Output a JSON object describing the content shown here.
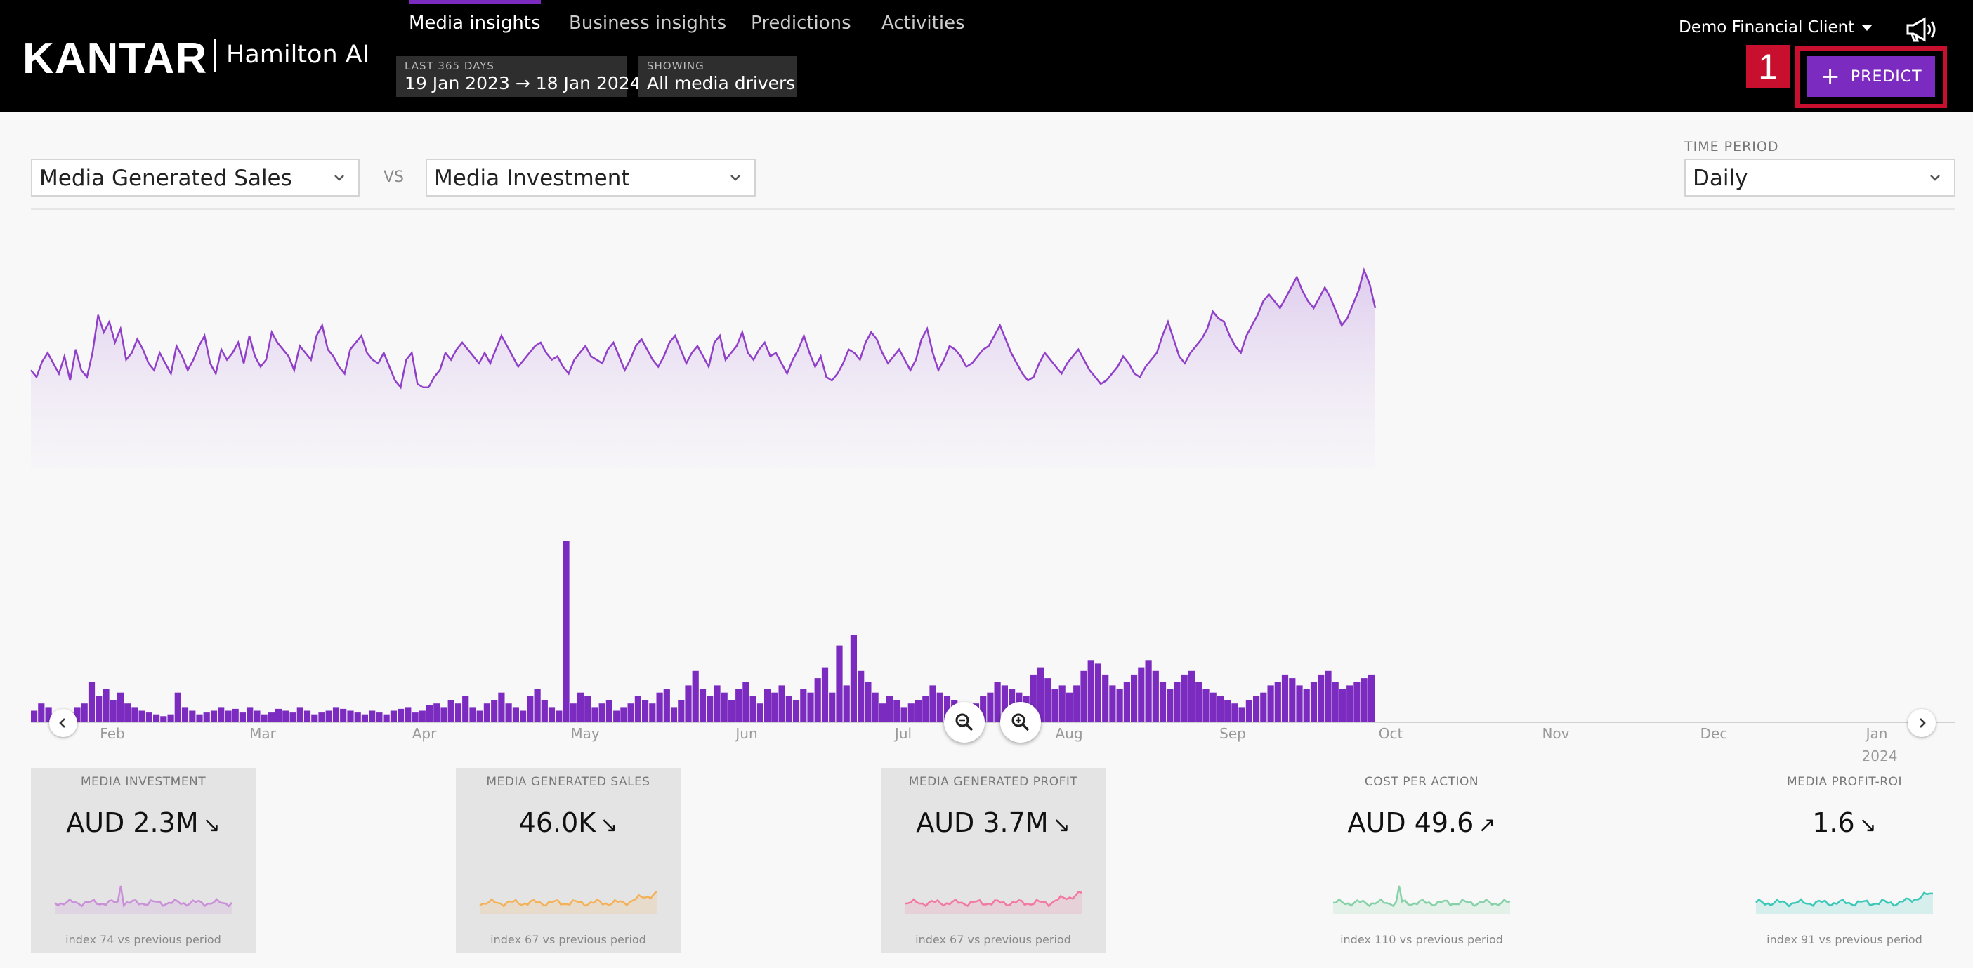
{
  "header": {
    "logo": "KANTAR",
    "product": "Hamilton AI",
    "tabs": [
      {
        "label": "Media insights",
        "active": true
      },
      {
        "label": "Business insights",
        "active": false
      },
      {
        "label": "Predictions",
        "active": false
      },
      {
        "label": "Activities",
        "active": false
      }
    ],
    "period": {
      "label": "LAST 365 DAYS",
      "value": "19 Jan 2023 → 18 Jan 2024"
    },
    "showing": {
      "label": "SHOWING",
      "value": "All media drivers"
    },
    "client": "Demo  Financial  Client",
    "predict_label": "PREDICT",
    "annotation": "1",
    "accent_color": "#7b2bbf",
    "annotation_color": "#c8102e",
    "icons": [
      "chevron-down-icon",
      "megaphone-icon",
      "plus-icon"
    ]
  },
  "controls": {
    "metric_left": "Media Generated Sales",
    "vs": "VS",
    "metric_right": "Media Investment",
    "time_period_label": "TIME PERIOD",
    "time_period": "Daily"
  },
  "chart_data": {
    "type": "line+bar",
    "x_ticks": [
      "Feb",
      "Mar",
      "Apr",
      "May",
      "Jun",
      "Jul",
      "Aug",
      "Sep",
      "Oct",
      "Nov",
      "Dec",
      "Jan"
    ],
    "x_sub_label": "2024",
    "series": [
      {
        "type": "area",
        "color": "#8f3fc8",
        "values": [
          50,
          46,
          55,
          60,
          54,
          48,
          58,
          44,
          62,
          50,
          46,
          60,
          82,
          72,
          78,
          66,
          74,
          56,
          60,
          68,
          62,
          54,
          50,
          60,
          54,
          48,
          64,
          58,
          50,
          56,
          64,
          70,
          54,
          48,
          62,
          56,
          60,
          66,
          54,
          70,
          58,
          52,
          56,
          72,
          66,
          62,
          58,
          50,
          64,
          60,
          56,
          70,
          76,
          62,
          58,
          52,
          48,
          62,
          66,
          70,
          60,
          56,
          54,
          60,
          52,
          44,
          40,
          56,
          60,
          42,
          40,
          40,
          46,
          50,
          60,
          56,
          62,
          66,
          62,
          58,
          54,
          60,
          54,
          62,
          70,
          64,
          58,
          52,
          56,
          60,
          64,
          66,
          60,
          56,
          58,
          52,
          48,
          56,
          60,
          64,
          58,
          56,
          54,
          62,
          66,
          58,
          50,
          56,
          64,
          68,
          62,
          56,
          52,
          58,
          66,
          70,
          62,
          54,
          60,
          64,
          58,
          52,
          66,
          70,
          56,
          60,
          64,
          72,
          60,
          56,
          62,
          66,
          58,
          60,
          54,
          48,
          56,
          62,
          70,
          60,
          52,
          58,
          46,
          44,
          48,
          54,
          62,
          60,
          56,
          66,
          72,
          68,
          60,
          54,
          58,
          62,
          56,
          50,
          56,
          68,
          74,
          60,
          50,
          56,
          64,
          62,
          58,
          52,
          54,
          58,
          62,
          64,
          70,
          76,
          68,
          60,
          54,
          48,
          44,
          46,
          54,
          60,
          56,
          52,
          48,
          54,
          58,
          62,
          56,
          50,
          46,
          42,
          44,
          48,
          52,
          58,
          54,
          48,
          46,
          52,
          56,
          60,
          70,
          78,
          68,
          58,
          54,
          60,
          64,
          68,
          74,
          84,
          80,
          78,
          70,
          64,
          60,
          70,
          76,
          82,
          90,
          94,
          90,
          86,
          92,
          98,
          104,
          96,
          90,
          86,
          92,
          98,
          92,
          84,
          76,
          80,
          88,
          96,
          108,
          100,
          86
        ]
      },
      {
        "type": "bar",
        "color": "#7b2bbf",
        "values": [
          6,
          10,
          8,
          4,
          6,
          5,
          8,
          10,
          22,
          14,
          18,
          12,
          16,
          10,
          8,
          6,
          5,
          4,
          3,
          4,
          16,
          8,
          6,
          4,
          5,
          6,
          8,
          6,
          7,
          5,
          8,
          6,
          4,
          5,
          7,
          6,
          5,
          8,
          6,
          4,
          5,
          6,
          8,
          7,
          6,
          5,
          4,
          6,
          5,
          4,
          6,
          7,
          8,
          5,
          6,
          9,
          10,
          8,
          12,
          10,
          14,
          8,
          6,
          10,
          12,
          16,
          10,
          8,
          6,
          14,
          18,
          12,
          8,
          6,
          100,
          10,
          16,
          14,
          8,
          10,
          12,
          6,
          8,
          10,
          14,
          12,
          10,
          16,
          18,
          8,
          12,
          20,
          28,
          18,
          14,
          20,
          16,
          12,
          18,
          22,
          14,
          10,
          18,
          16,
          20,
          14,
          12,
          18,
          16,
          24,
          30,
          16,
          42,
          20,
          48,
          28,
          22,
          16,
          10,
          14,
          12,
          8,
          10,
          12,
          14,
          20,
          16,
          14,
          12,
          10,
          8,
          10,
          14,
          16,
          22,
          20,
          18,
          16,
          14,
          26,
          30,
          24,
          18,
          20,
          16,
          20,
          28,
          34,
          32,
          26,
          20,
          18,
          22,
          26,
          30,
          34,
          28,
          22,
          18,
          22,
          26,
          28,
          22,
          18,
          16,
          14,
          12,
          10,
          8,
          12,
          14,
          16,
          20,
          22,
          26,
          24,
          20,
          18,
          22,
          26,
          28,
          22,
          18,
          20,
          22,
          24,
          26
        ]
      }
    ]
  },
  "cards": [
    {
      "label": "MEDIA INVESTMENT",
      "value": "AUD 2.3M",
      "arrow": "↘",
      "index": "index 74 vs previous period",
      "shaded": true,
      "color": "#c98fd8"
    },
    {
      "label": "MEDIA GENERATED SALES",
      "value": "46.0K",
      "arrow": "↘",
      "index": "index 67 vs previous period",
      "shaded": true,
      "color": "#f3b25a"
    },
    {
      "label": "MEDIA GENERATED PROFIT",
      "value": "AUD 3.7M",
      "arrow": "↘",
      "index": "index 67 vs previous period",
      "shaded": true,
      "color": "#f27aa0"
    },
    {
      "label": "COST PER ACTION",
      "value": "AUD 49.6",
      "arrow": "↗",
      "index": "index 110 vs previous period",
      "shaded": false,
      "color": "#86d1a8"
    },
    {
      "label": "MEDIA PROFIT-ROI",
      "value": "1.6",
      "arrow": "↘",
      "index": "index 91 vs previous period",
      "shaded": false,
      "color": "#3cc8b8"
    }
  ]
}
